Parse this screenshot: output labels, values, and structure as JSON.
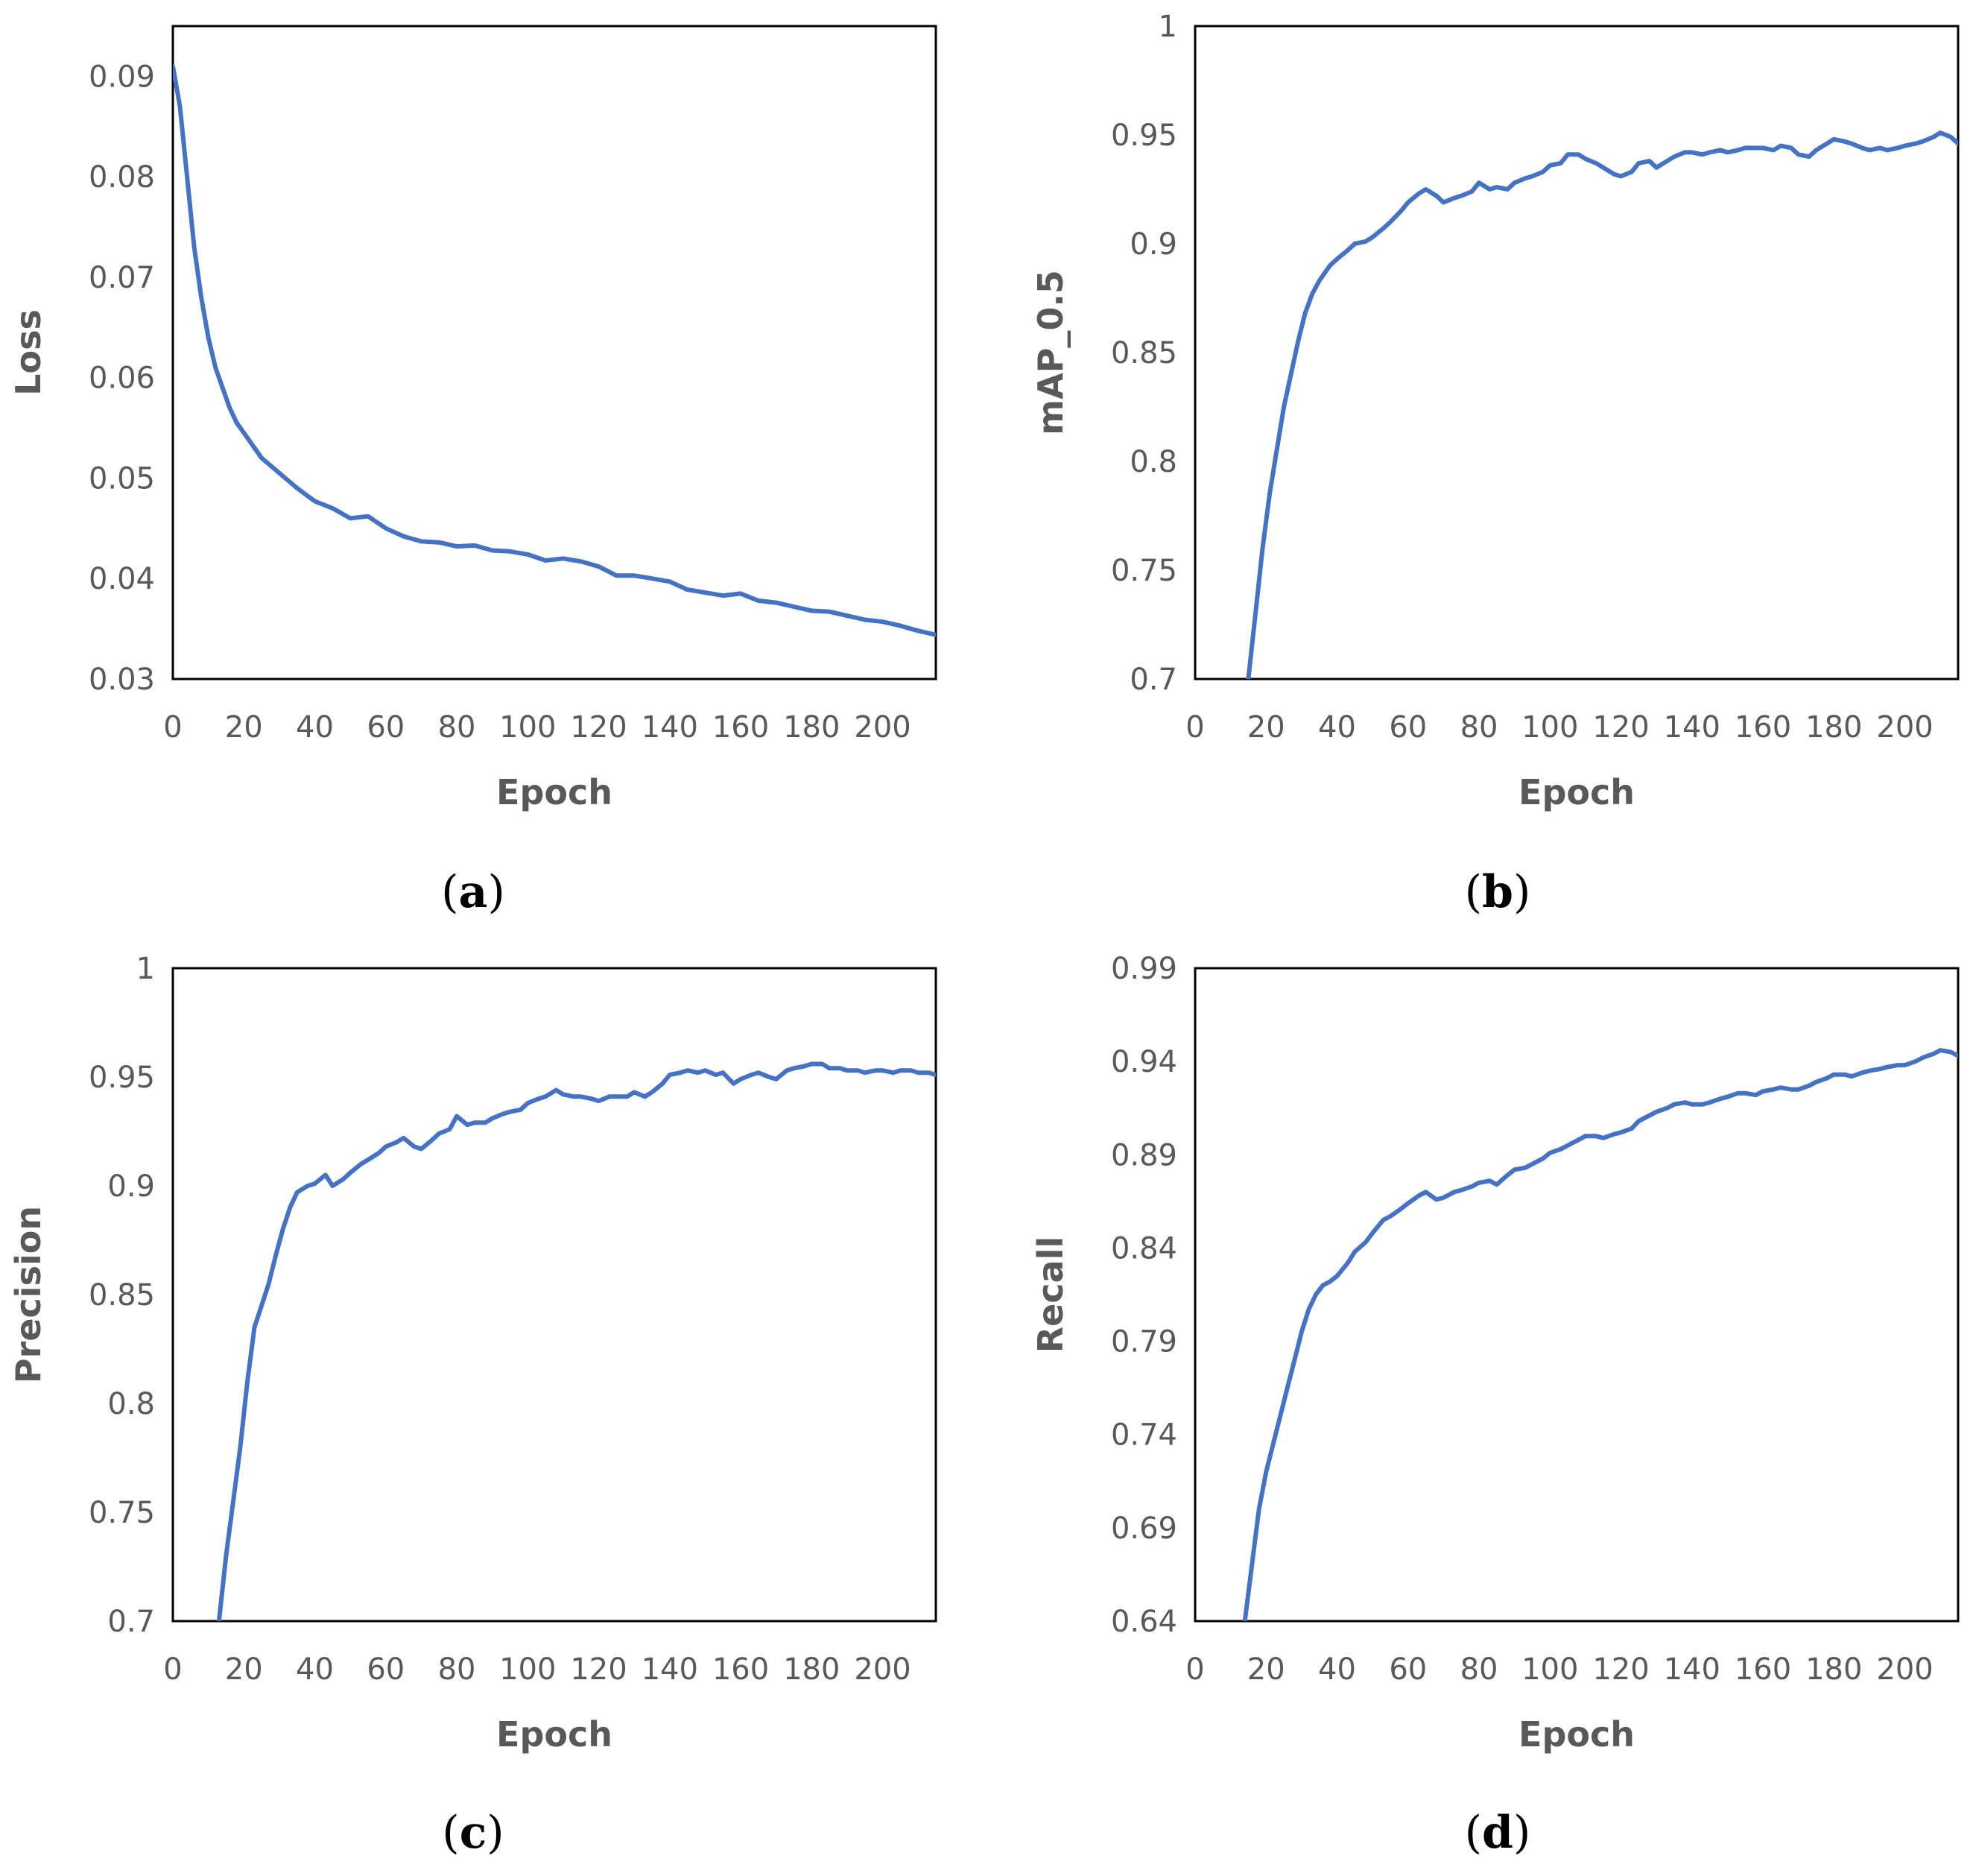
{
  "colors": {
    "series": "#4472C4",
    "axis_text": "#595959",
    "frame": "#000000"
  },
  "chart_data": [
    {
      "id": "a",
      "type": "line",
      "caption": "a",
      "title": "",
      "xlabel": "Epoch",
      "ylabel": "Loss",
      "xlim": [
        0,
        215
      ],
      "ylim": [
        0.03,
        0.095
      ],
      "xticks": [
        0,
        20,
        40,
        60,
        80,
        100,
        120,
        140,
        160,
        180,
        200
      ],
      "xtick_labels": [
        "0",
        "20",
        "40",
        "60",
        "80",
        "100",
        "120",
        "140",
        "160",
        "180",
        "200"
      ],
      "yticks": [
        0.03,
        0.04,
        0.05,
        0.06,
        0.07,
        0.08,
        0.09
      ],
      "ytick_labels": [
        "0.03",
        "0.04",
        "0.05",
        "0.06",
        "0.07",
        "0.08",
        "0.09"
      ],
      "grid": false,
      "series": [
        {
          "name": "Loss",
          "x": [
            0,
            2,
            4,
            6,
            8,
            10,
            12,
            14,
            16,
            18,
            20,
            25,
            30,
            35,
            40,
            45,
            50,
            55,
            60,
            65,
            70,
            75,
            80,
            85,
            90,
            95,
            100,
            105,
            110,
            115,
            120,
            125,
            130,
            135,
            140,
            145,
            150,
            155,
            160,
            165,
            170,
            175,
            180,
            185,
            190,
            195,
            200,
            205,
            210,
            215
          ],
          "values": [
            0.091,
            0.087,
            0.08,
            0.073,
            0.068,
            0.064,
            0.061,
            0.059,
            0.057,
            0.0555,
            0.0545,
            0.052,
            0.0505,
            0.049,
            0.0477,
            0.047,
            0.046,
            0.0462,
            0.045,
            0.0442,
            0.0437,
            0.0436,
            0.0432,
            0.0433,
            0.0428,
            0.0427,
            0.0424,
            0.0418,
            0.042,
            0.0417,
            0.0412,
            0.0403,
            0.0403,
            0.04,
            0.0397,
            0.0389,
            0.0386,
            0.0383,
            0.0385,
            0.0378,
            0.0376,
            0.0372,
            0.0368,
            0.0367,
            0.0363,
            0.0359,
            0.0357,
            0.0353,
            0.0348,
            0.0344
          ]
        }
      ]
    },
    {
      "id": "b",
      "type": "line",
      "caption": "b",
      "title": "",
      "xlabel": "Epoch",
      "ylabel": "mAP_0.5",
      "xlim": [
        0,
        215
      ],
      "ylim": [
        0.7,
        1.0
      ],
      "xticks": [
        0,
        20,
        40,
        60,
        80,
        100,
        120,
        140,
        160,
        180,
        200
      ],
      "xtick_labels": [
        "0",
        "20",
        "40",
        "60",
        "80",
        "100",
        "120",
        "140",
        "160",
        "180",
        "200"
      ],
      "yticks": [
        0.7,
        0.75,
        0.8,
        0.85,
        0.9,
        0.95,
        1.0
      ],
      "ytick_labels": [
        "0.7",
        "0.75",
        "0.8",
        "0.85",
        "0.9",
        "0.95",
        "1"
      ],
      "grid": false,
      "series": [
        {
          "name": "mAP_0.5",
          "x": [
            15,
            17,
            19,
            21,
            23,
            25,
            27,
            29,
            31,
            33,
            35,
            38,
            40,
            43,
            45,
            48,
            50,
            53,
            55,
            58,
            60,
            63,
            65,
            68,
            70,
            73,
            75,
            78,
            80,
            83,
            85,
            88,
            90,
            93,
            95,
            98,
            100,
            103,
            105,
            108,
            110,
            113,
            115,
            118,
            120,
            123,
            125,
            128,
            130,
            133,
            135,
            138,
            140,
            143,
            145,
            148,
            150,
            153,
            155,
            158,
            160,
            163,
            165,
            168,
            170,
            173,
            175,
            178,
            180,
            183,
            185,
            188,
            190,
            193,
            195,
            198,
            200,
            203,
            205,
            208,
            210,
            213,
            215
          ],
          "values": [
            0.7,
            0.73,
            0.76,
            0.785,
            0.805,
            0.825,
            0.84,
            0.855,
            0.868,
            0.877,
            0.883,
            0.89,
            0.893,
            0.897,
            0.9,
            0.901,
            0.903,
            0.907,
            0.91,
            0.915,
            0.919,
            0.923,
            0.925,
            0.922,
            0.919,
            0.921,
            0.922,
            0.924,
            0.928,
            0.925,
            0.926,
            0.925,
            0.928,
            0.93,
            0.931,
            0.933,
            0.936,
            0.937,
            0.941,
            0.941,
            0.939,
            0.937,
            0.935,
            0.932,
            0.931,
            0.933,
            0.937,
            0.938,
            0.935,
            0.938,
            0.94,
            0.942,
            0.942,
            0.941,
            0.942,
            0.943,
            0.942,
            0.943,
            0.944,
            0.944,
            0.944,
            0.943,
            0.945,
            0.944,
            0.941,
            0.94,
            0.943,
            0.946,
            0.948,
            0.947,
            0.946,
            0.944,
            0.943,
            0.944,
            0.943,
            0.944,
            0.945,
            0.946,
            0.947,
            0.949,
            0.951,
            0.949,
            0.946
          ]
        }
      ]
    },
    {
      "id": "c",
      "type": "line",
      "caption": "c",
      "title": "",
      "xlabel": "Epoch",
      "ylabel": "Precision",
      "xlim": [
        0,
        215
      ],
      "ylim": [
        0.7,
        1.0
      ],
      "xticks": [
        0,
        20,
        40,
        60,
        80,
        100,
        120,
        140,
        160,
        180,
        200
      ],
      "xtick_labels": [
        "0",
        "20",
        "40",
        "60",
        "80",
        "100",
        "120",
        "140",
        "160",
        "180",
        "200"
      ],
      "yticks": [
        0.7,
        0.75,
        0.8,
        0.85,
        0.9,
        0.95,
        1.0
      ],
      "ytick_labels": [
        "0.7",
        "0.75",
        "0.8",
        "0.85",
        "0.9",
        "0.95",
        "1"
      ],
      "grid": false,
      "series": [
        {
          "name": "Precision",
          "x": [
            13,
            15,
            17,
            19,
            21,
            23,
            25,
            27,
            29,
            31,
            33,
            35,
            38,
            40,
            43,
            45,
            48,
            50,
            53,
            55,
            58,
            60,
            63,
            65,
            68,
            70,
            73,
            75,
            78,
            80,
            83,
            85,
            88,
            90,
            93,
            95,
            98,
            100,
            103,
            105,
            108,
            110,
            113,
            115,
            118,
            120,
            123,
            125,
            128,
            130,
            133,
            135,
            138,
            140,
            143,
            145,
            148,
            150,
            153,
            155,
            158,
            160,
            163,
            165,
            168,
            170,
            173,
            175,
            178,
            180,
            183,
            185,
            188,
            190,
            193,
            195,
            198,
            200,
            203,
            205,
            208,
            210,
            213,
            215
          ],
          "values": [
            0.7,
            0.73,
            0.755,
            0.78,
            0.81,
            0.835,
            0.845,
            0.855,
            0.868,
            0.88,
            0.89,
            0.897,
            0.9,
            0.901,
            0.905,
            0.9,
            0.903,
            0.906,
            0.91,
            0.912,
            0.915,
            0.918,
            0.92,
            0.922,
            0.918,
            0.917,
            0.921,
            0.924,
            0.926,
            0.932,
            0.928,
            0.929,
            0.929,
            0.931,
            0.933,
            0.934,
            0.935,
            0.938,
            0.94,
            0.941,
            0.944,
            0.942,
            0.941,
            0.941,
            0.94,
            0.939,
            0.941,
            0.941,
            0.941,
            0.943,
            0.941,
            0.943,
            0.947,
            0.951,
            0.952,
            0.953,
            0.952,
            0.953,
            0.951,
            0.952,
            0.947,
            0.949,
            0.951,
            0.952,
            0.95,
            0.949,
            0.953,
            0.954,
            0.955,
            0.956,
            0.956,
            0.954,
            0.954,
            0.953,
            0.953,
            0.952,
            0.953,
            0.953,
            0.952,
            0.953,
            0.953,
            0.952,
            0.952,
            0.951
          ]
        }
      ]
    },
    {
      "id": "d",
      "type": "line",
      "caption": "d",
      "title": "",
      "xlabel": "Epoch",
      "ylabel": "Recall",
      "xlim": [
        0,
        215
      ],
      "ylim": [
        0.64,
        0.99
      ],
      "xticks": [
        0,
        20,
        40,
        60,
        80,
        100,
        120,
        140,
        160,
        180,
        200
      ],
      "xtick_labels": [
        "0",
        "20",
        "40",
        "60",
        "80",
        "100",
        "120",
        "140",
        "160",
        "180",
        "200"
      ],
      "yticks": [
        0.64,
        0.69,
        0.74,
        0.79,
        0.84,
        0.89,
        0.94,
        0.99
      ],
      "ytick_labels": [
        "0.64",
        "0.69",
        "0.74",
        "0.79",
        "0.84",
        "0.89",
        "0.94",
        "0.99"
      ],
      "grid": false,
      "series": [
        {
          "name": "Recall",
          "x": [
            14,
            16,
            18,
            20,
            22,
            24,
            26,
            28,
            30,
            32,
            34,
            36,
            38,
            40,
            43,
            45,
            48,
            50,
            53,
            55,
            58,
            60,
            63,
            65,
            68,
            70,
            73,
            75,
            78,
            80,
            83,
            85,
            88,
            90,
            93,
            95,
            98,
            100,
            103,
            105,
            108,
            110,
            113,
            115,
            118,
            120,
            123,
            125,
            128,
            130,
            133,
            135,
            138,
            140,
            143,
            145,
            148,
            150,
            153,
            155,
            158,
            160,
            163,
            165,
            168,
            170,
            173,
            175,
            178,
            180,
            183,
            185,
            188,
            190,
            193,
            195,
            198,
            200,
            203,
            205,
            208,
            210,
            213,
            215
          ],
          "values": [
            0.64,
            0.67,
            0.7,
            0.72,
            0.735,
            0.75,
            0.765,
            0.78,
            0.795,
            0.807,
            0.815,
            0.82,
            0.822,
            0.825,
            0.832,
            0.838,
            0.843,
            0.848,
            0.855,
            0.857,
            0.861,
            0.864,
            0.868,
            0.87,
            0.866,
            0.867,
            0.87,
            0.871,
            0.873,
            0.875,
            0.876,
            0.874,
            0.879,
            0.882,
            0.883,
            0.885,
            0.888,
            0.891,
            0.893,
            0.895,
            0.898,
            0.9,
            0.9,
            0.899,
            0.901,
            0.902,
            0.904,
            0.908,
            0.911,
            0.913,
            0.915,
            0.917,
            0.918,
            0.917,
            0.917,
            0.918,
            0.92,
            0.921,
            0.923,
            0.923,
            0.922,
            0.924,
            0.925,
            0.926,
            0.925,
            0.925,
            0.927,
            0.929,
            0.931,
            0.933,
            0.933,
            0.932,
            0.934,
            0.935,
            0.936,
            0.937,
            0.938,
            0.938,
            0.94,
            0.942,
            0.944,
            0.946,
            0.945,
            0.943
          ]
        }
      ]
    }
  ]
}
